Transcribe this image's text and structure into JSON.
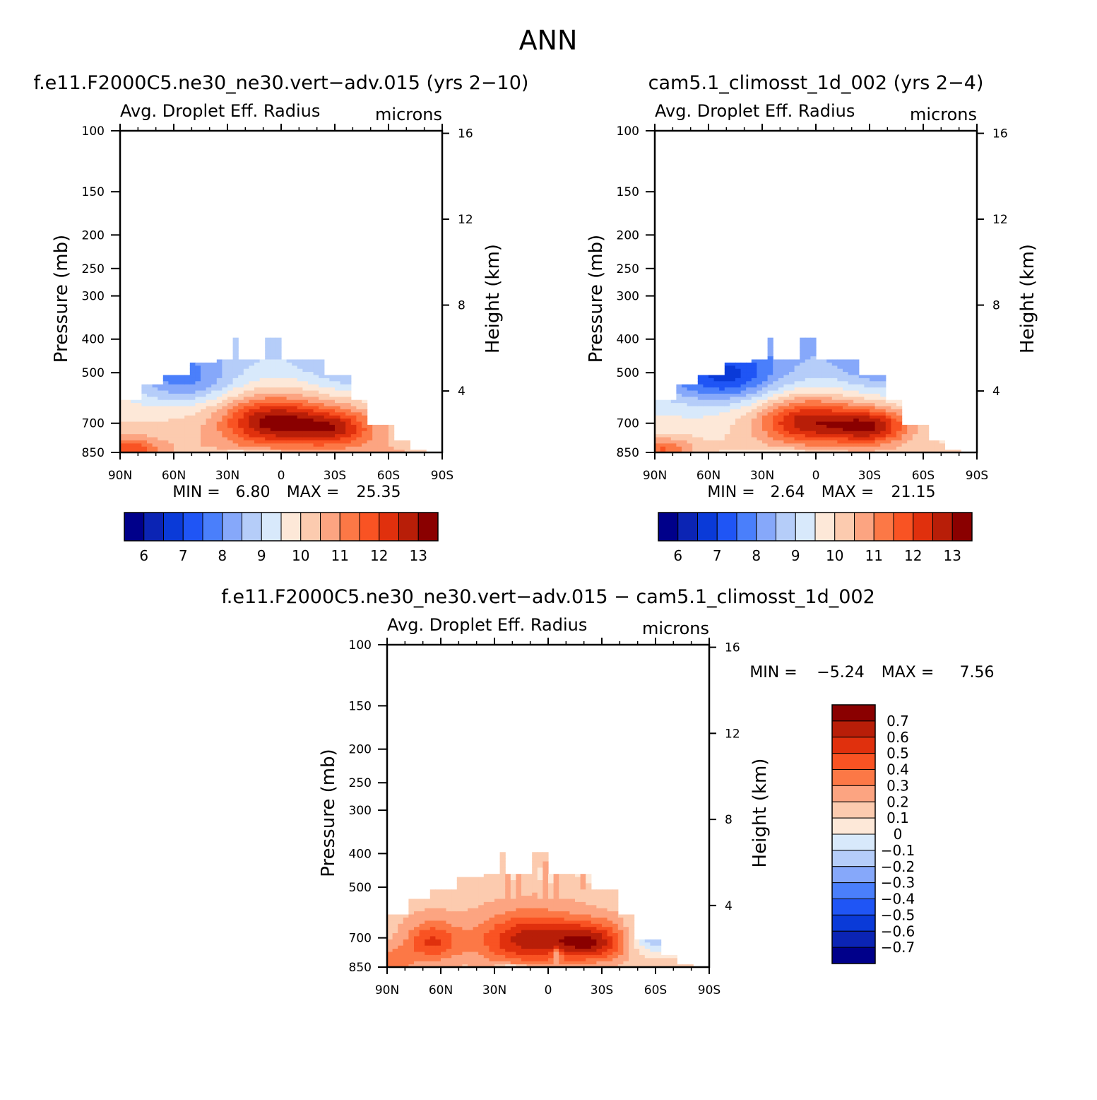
{
  "figure": {
    "title": "ANN"
  },
  "colors": {
    "abs_levels": [
      "#00008a",
      "#0b24b4",
      "#0a3ad8",
      "#1f55f5",
      "#4a7ffb",
      "#86a8fa",
      "#b5cdf9",
      "#d8e9fb",
      "#fde8d8",
      "#fccbaf",
      "#fca481",
      "#fc7846",
      "#f95323",
      "#e0300d",
      "#b81e08",
      "#8a0000"
    ],
    "diff_levels": [
      "#00008a",
      "#0b24b4",
      "#0a3ad8",
      "#1f55f5",
      "#4a7ffb",
      "#86a8fa",
      "#b5cdf9",
      "#d8e9fb",
      "#fde8d8",
      "#fccbaf",
      "#fca481",
      "#fc7846",
      "#f95323",
      "#e0300d",
      "#b81e08",
      "#8a0000"
    ]
  },
  "chart_data": [
    {
      "type": "heatmap",
      "title": "f.e11.F2000C5.ne30_ne30.vert−adv.015 (yrs 2−10)",
      "subtitle": "Avg. Droplet Eff. Radius",
      "units": "microns",
      "ylabel": "Pressure (mb)",
      "ylabel_right": "Height (km)",
      "x_ticks": [
        "90N",
        "60N",
        "30N",
        "0",
        "30S",
        "60S",
        "90S"
      ],
      "y_ticks": [
        100,
        150,
        200,
        250,
        300,
        400,
        500,
        700,
        850
      ],
      "y_right_ticks": [
        16,
        12,
        8,
        4
      ],
      "y_scale": "log",
      "ylim": [
        850,
        100
      ],
      "xlim": [
        90,
        -90
      ],
      "stats": {
        "min_label": "MIN =",
        "min": "6.80",
        "max_label": "MAX =",
        "max": "25.35"
      },
      "colorbar": {
        "orientation": "horizontal",
        "labels": [
          "6",
          "7",
          "8",
          "9",
          "10",
          "11",
          "12",
          "13"
        ]
      }
    },
    {
      "type": "heatmap",
      "title": "cam5.1_climosst_1d_002 (yrs 2−4)",
      "subtitle": "Avg. Droplet Eff. Radius",
      "units": "microns",
      "ylabel": "Pressure (mb)",
      "ylabel_right": "Height (km)",
      "x_ticks": [
        "90N",
        "60N",
        "30N",
        "0",
        "30S",
        "60S",
        "90S"
      ],
      "y_ticks": [
        100,
        150,
        200,
        250,
        300,
        400,
        500,
        700,
        850
      ],
      "y_right_ticks": [
        16,
        12,
        8,
        4
      ],
      "y_scale": "log",
      "ylim": [
        850,
        100
      ],
      "xlim": [
        90,
        -90
      ],
      "stats": {
        "min_label": "MIN =",
        "min": "2.64",
        "max_label": "MAX =",
        "max": "21.15"
      },
      "colorbar": {
        "orientation": "horizontal",
        "labels": [
          "6",
          "7",
          "8",
          "9",
          "10",
          "11",
          "12",
          "13"
        ]
      }
    },
    {
      "type": "heatmap",
      "title": "f.e11.F2000C5.ne30_ne30.vert−adv.015 − cam5.1_climosst_1d_002",
      "subtitle": "Avg. Droplet Eff. Radius",
      "units": "microns",
      "ylabel": "Pressure (mb)",
      "ylabel_right": "Height (km)",
      "x_ticks": [
        "90N",
        "60N",
        "30N",
        "0",
        "30S",
        "60S",
        "90S"
      ],
      "y_ticks": [
        100,
        150,
        200,
        250,
        300,
        400,
        500,
        700,
        850
      ],
      "y_right_ticks": [
        16,
        12,
        8,
        4
      ],
      "y_scale": "log",
      "ylim": [
        850,
        100
      ],
      "xlim": [
        90,
        -90
      ],
      "stats": {
        "min_label": "MIN =",
        "min": "−5.24",
        "max_label": "MAX =",
        "max": "7.56"
      },
      "colorbar": {
        "orientation": "vertical",
        "labels": [
          "0.7",
          "0.6",
          "0.5",
          "0.4",
          "0.3",
          "0.2",
          "0.1",
          "0",
          "−0.1",
          "−0.2",
          "−0.3",
          "−0.4",
          "−0.5",
          "−0.6",
          "−0.7"
        ]
      }
    }
  ]
}
